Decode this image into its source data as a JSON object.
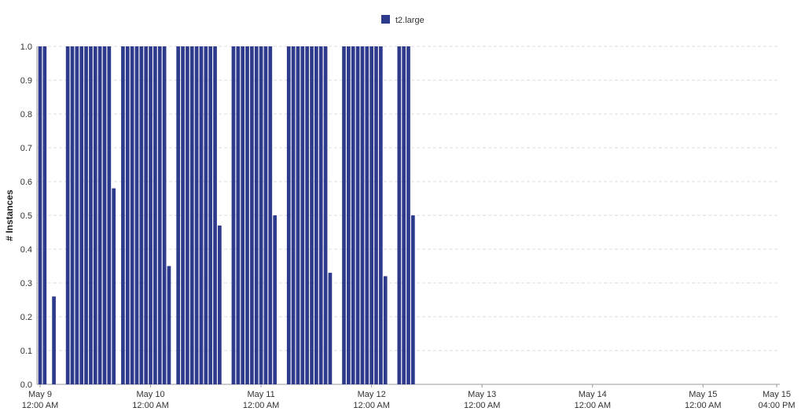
{
  "chart_data": {
    "type": "bar",
    "legend": {
      "label": "t2.large",
      "position": "top-center"
    },
    "color": "#2e3a8c",
    "ylabel": "# Instances",
    "xlabel": "",
    "ylim": [
      0,
      1.0
    ],
    "yticks": [
      "0.0",
      "0.1",
      "0.2",
      "0.3",
      "0.4",
      "0.5",
      "0.6",
      "0.7",
      "0.8",
      "0.9",
      "1.0"
    ],
    "grid": true,
    "xlim": [
      "2017-05-09 00:00",
      "2017-05-15 16:00"
    ],
    "xticks": [
      {
        "x": "2017-05-09 00:00",
        "line1": "May 9",
        "line2": "12:00 AM"
      },
      {
        "x": "2017-05-10 00:00",
        "line1": "May 10",
        "line2": "12:00 AM"
      },
      {
        "x": "2017-05-11 00:00",
        "line1": "May 11",
        "line2": "12:00 AM"
      },
      {
        "x": "2017-05-12 00:00",
        "line1": "May 12",
        "line2": "12:00 AM"
      },
      {
        "x": "2017-05-13 00:00",
        "line1": "May 13",
        "line2": "12:00 AM"
      },
      {
        "x": "2017-05-14 00:00",
        "line1": "May 14",
        "line2": "12:00 AM"
      },
      {
        "x": "2017-05-15 00:00",
        "line1": "May 15",
        "line2": "12:00 AM"
      },
      {
        "x": "2017-05-15 16:00",
        "line1": "May 15",
        "line2": "04:00 PM"
      }
    ],
    "bar_width_hours": 0.8,
    "groups": [
      {
        "hours": [
          "2017-05-09 00:00",
          "2017-05-09 01:00"
        ],
        "values": [
          1.0,
          1.0
        ]
      },
      {
        "hours": [
          "2017-05-09 03:00"
        ],
        "values": [
          0.26
        ]
      },
      {
        "hours": [
          "2017-05-09 06:00",
          "2017-05-09 07:00",
          "2017-05-09 08:00",
          "2017-05-09 09:00",
          "2017-05-09 10:00",
          "2017-05-09 11:00",
          "2017-05-09 12:00",
          "2017-05-09 13:00",
          "2017-05-09 14:00",
          "2017-05-09 15:00"
        ],
        "values": [
          1.0,
          1.0,
          1.0,
          1.0,
          1.0,
          1.0,
          1.0,
          1.0,
          1.0,
          1.0
        ]
      },
      {
        "hours": [
          "2017-05-09 16:00"
        ],
        "values": [
          0.58
        ]
      },
      {
        "hours": [
          "2017-05-09 18:00",
          "2017-05-09 19:00",
          "2017-05-09 20:00",
          "2017-05-09 21:00",
          "2017-05-09 22:00",
          "2017-05-09 23:00",
          "2017-05-10 00:00",
          "2017-05-10 01:00",
          "2017-05-10 02:00",
          "2017-05-10 03:00"
        ],
        "values": [
          1.0,
          1.0,
          1.0,
          1.0,
          1.0,
          1.0,
          1.0,
          1.0,
          1.0,
          1.0
        ]
      },
      {
        "hours": [
          "2017-05-10 04:00"
        ],
        "values": [
          0.35
        ]
      },
      {
        "hours": [
          "2017-05-10 06:00",
          "2017-05-10 07:00",
          "2017-05-10 08:00",
          "2017-05-10 09:00",
          "2017-05-10 10:00",
          "2017-05-10 11:00",
          "2017-05-10 12:00",
          "2017-05-10 13:00",
          "2017-05-10 14:00"
        ],
        "values": [
          1.0,
          1.0,
          1.0,
          1.0,
          1.0,
          1.0,
          1.0,
          1.0,
          1.0
        ]
      },
      {
        "hours": [
          "2017-05-10 15:00"
        ],
        "values": [
          0.47
        ]
      },
      {
        "hours": [
          "2017-05-10 18:00",
          "2017-05-10 19:00",
          "2017-05-10 20:00",
          "2017-05-10 21:00",
          "2017-05-10 22:00",
          "2017-05-10 23:00",
          "2017-05-11 00:00",
          "2017-05-11 01:00",
          "2017-05-11 02:00"
        ],
        "values": [
          1.0,
          1.0,
          1.0,
          1.0,
          1.0,
          1.0,
          1.0,
          1.0,
          1.0
        ]
      },
      {
        "hours": [
          "2017-05-11 03:00"
        ],
        "values": [
          0.5
        ]
      },
      {
        "hours": [
          "2017-05-11 06:00",
          "2017-05-11 07:00",
          "2017-05-11 08:00",
          "2017-05-11 09:00",
          "2017-05-11 10:00",
          "2017-05-11 11:00",
          "2017-05-11 12:00",
          "2017-05-11 13:00",
          "2017-05-11 14:00"
        ],
        "values": [
          1.0,
          1.0,
          1.0,
          1.0,
          1.0,
          1.0,
          1.0,
          1.0,
          1.0
        ]
      },
      {
        "hours": [
          "2017-05-11 15:00"
        ],
        "values": [
          0.33
        ]
      },
      {
        "hours": [
          "2017-05-11 18:00",
          "2017-05-11 19:00",
          "2017-05-11 20:00",
          "2017-05-11 21:00",
          "2017-05-11 22:00",
          "2017-05-11 23:00",
          "2017-05-12 00:00",
          "2017-05-12 01:00",
          "2017-05-12 02:00"
        ],
        "values": [
          1.0,
          1.0,
          1.0,
          1.0,
          1.0,
          1.0,
          1.0,
          1.0,
          1.0
        ]
      },
      {
        "hours": [
          "2017-05-12 03:00"
        ],
        "values": [
          0.32
        ]
      },
      {
        "hours": [
          "2017-05-12 06:00",
          "2017-05-12 07:00",
          "2017-05-12 08:00"
        ],
        "values": [
          1.0,
          1.0,
          1.0
        ]
      },
      {
        "hours": [
          "2017-05-12 09:00"
        ],
        "values": [
          0.5
        ]
      }
    ]
  }
}
